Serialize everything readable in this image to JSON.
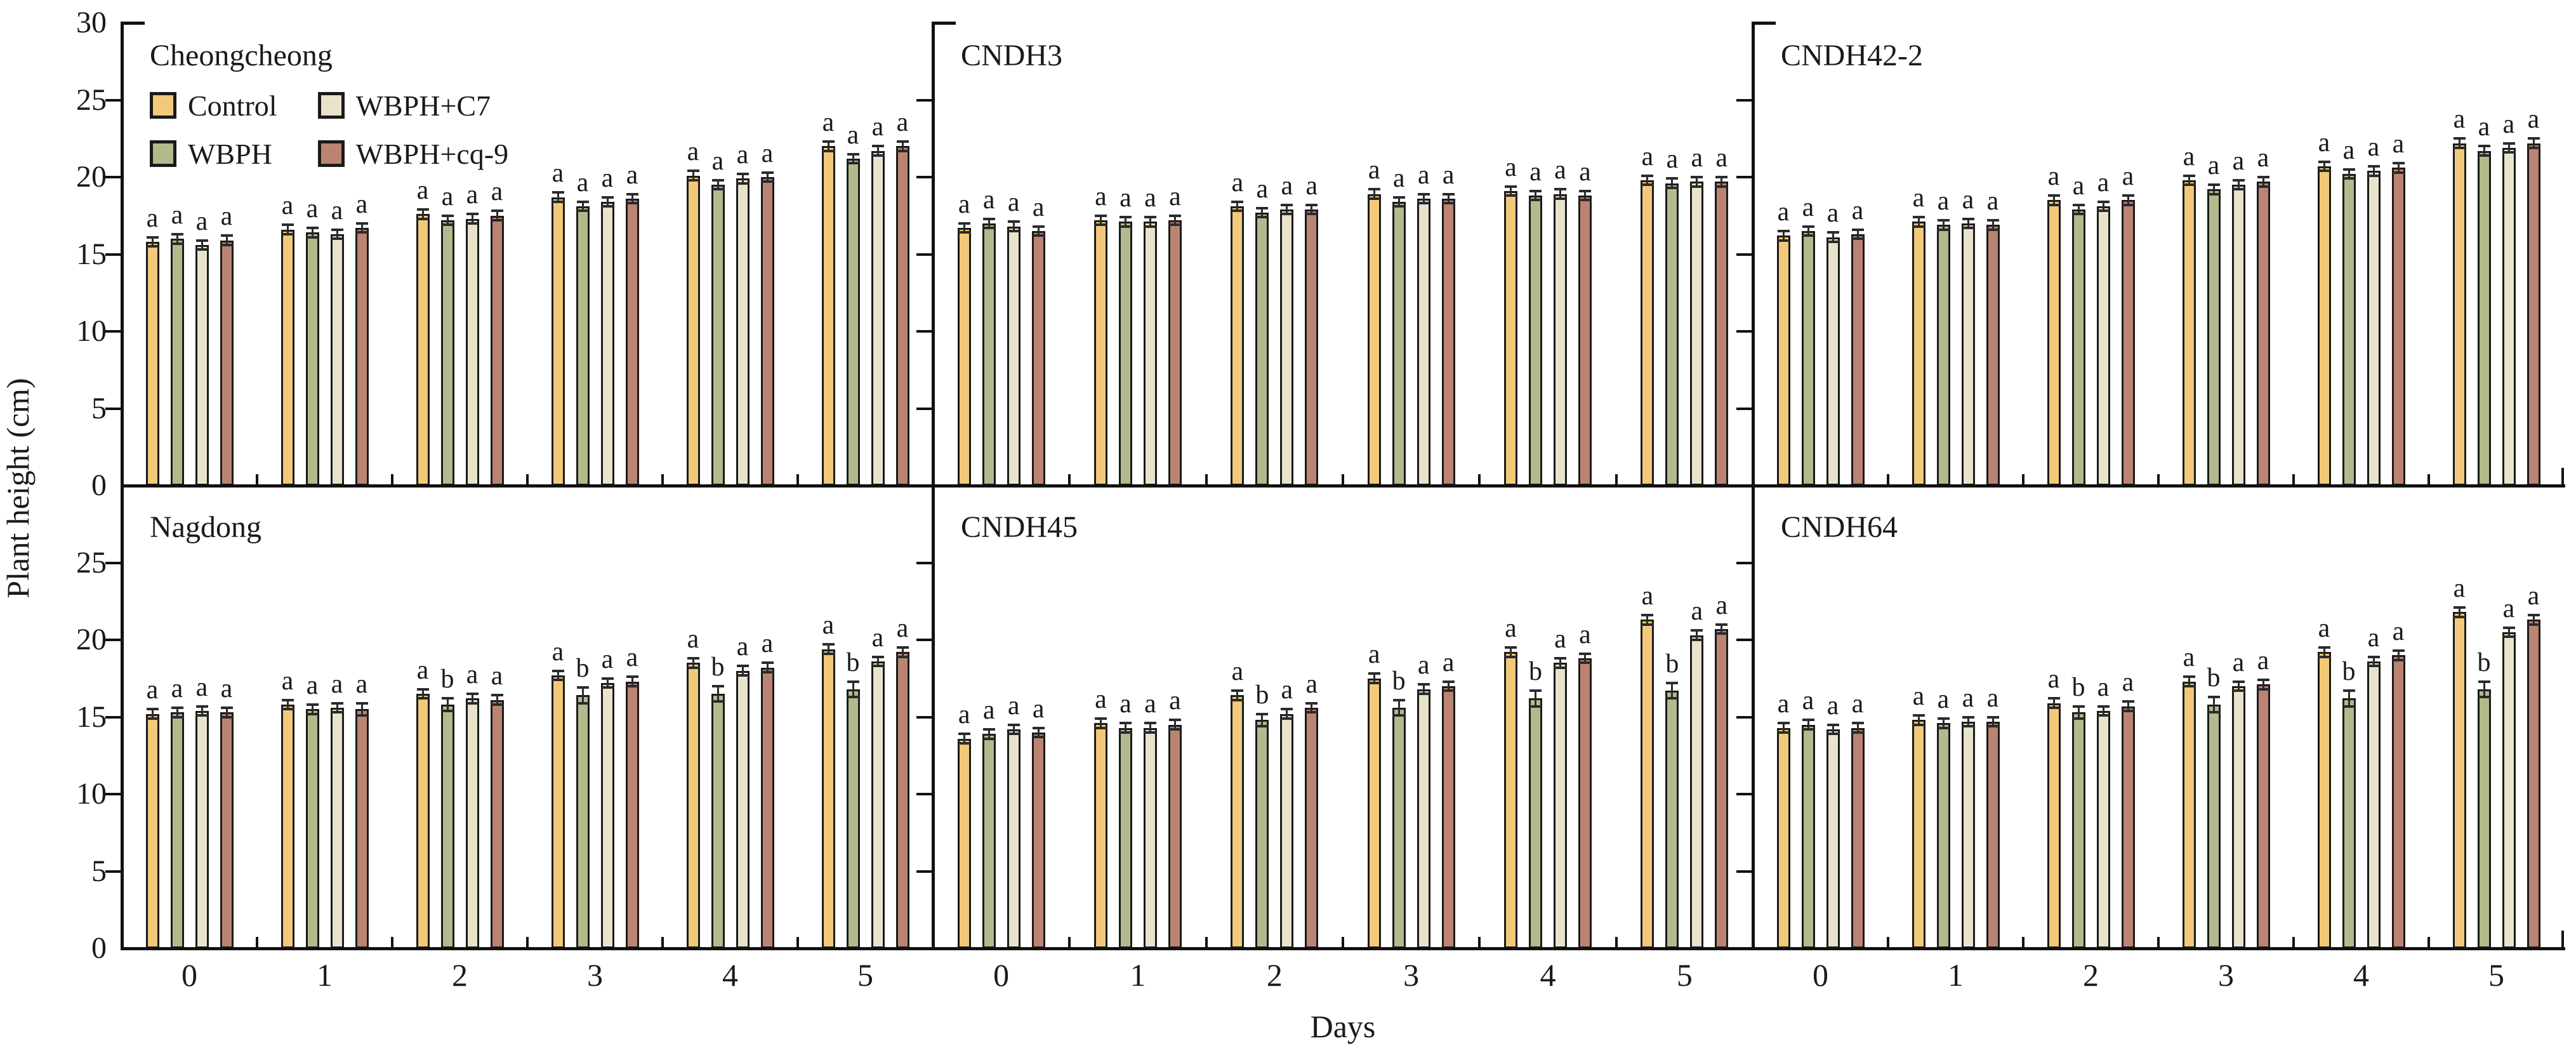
{
  "figure": {
    "ylabel": "Plant height (cm)",
    "xlabel": "Days",
    "y_tick_labels_top": [
      "0",
      "5",
      "10",
      "15",
      "20",
      "25",
      "30"
    ],
    "y_tick_labels_bottom": [
      "0",
      "5",
      "10",
      "15",
      "20",
      "25"
    ],
    "x_tick_labels": [
      "0",
      "1",
      "2",
      "3",
      "4",
      "5"
    ],
    "axis_color": "#111111",
    "bar_border_color": "#1a1a1a",
    "error_bar_color": "#2b2b2b",
    "legend": [
      {
        "label": "Control",
        "color": "#F1C978"
      },
      {
        "label": "WBPH",
        "color": "#B2BA8C"
      },
      {
        "label": "WBPH+C7",
        "color": "#E9E3CB"
      },
      {
        "label": "WBPH+cq-9",
        "color": "#BB8472"
      }
    ]
  },
  "chart_data": [
    {
      "type": "bar",
      "title": "Cheongcheong",
      "row": 0,
      "col": 0,
      "categories": [
        "0",
        "1",
        "2",
        "3",
        "4",
        "5"
      ],
      "ylim": [
        0,
        30
      ],
      "yticks": [
        0,
        5,
        10,
        15,
        20,
        25,
        30
      ],
      "grid": false,
      "legend_position": "top-left",
      "series": [
        {
          "name": "Control",
          "values": [
            15.8,
            16.6,
            17.6,
            18.7,
            20.1,
            22.0
          ],
          "errors": [
            0.3,
            0.3,
            0.3,
            0.3,
            0.3,
            0.3
          ],
          "letters": [
            "a",
            "a",
            "a",
            "a",
            "a",
            "a"
          ]
        },
        {
          "name": "WBPH",
          "values": [
            16.0,
            16.4,
            17.2,
            18.1,
            19.5,
            21.2
          ],
          "errors": [
            0.3,
            0.3,
            0.3,
            0.3,
            0.3,
            0.3
          ],
          "letters": [
            "a",
            "a",
            "a",
            "a",
            "a",
            "a"
          ]
        },
        {
          "name": "WBPH+C7",
          "values": [
            15.6,
            16.3,
            17.3,
            18.4,
            19.9,
            21.7
          ],
          "errors": [
            0.3,
            0.3,
            0.3,
            0.3,
            0.3,
            0.3
          ],
          "letters": [
            "a",
            "a",
            "a",
            "a",
            "a",
            "a"
          ]
        },
        {
          "name": "WBPH+cq-9",
          "values": [
            15.9,
            16.7,
            17.5,
            18.6,
            20.0,
            22.0
          ],
          "errors": [
            0.3,
            0.3,
            0.3,
            0.3,
            0.3,
            0.3
          ],
          "letters": [
            "a",
            "a",
            "a",
            "a",
            "a",
            "a"
          ]
        }
      ]
    },
    {
      "type": "bar",
      "title": "CNDH3",
      "row": 0,
      "col": 1,
      "categories": [
        "0",
        "1",
        "2",
        "3",
        "4",
        "5"
      ],
      "ylim": [
        0,
        30
      ],
      "yticks": [
        0,
        5,
        10,
        15,
        20,
        25,
        30
      ],
      "grid": false,
      "series": [
        {
          "name": "Control",
          "values": [
            16.7,
            17.2,
            18.1,
            18.9,
            19.1,
            19.8
          ],
          "errors": [
            0.3,
            0.3,
            0.3,
            0.3,
            0.3,
            0.3
          ],
          "letters": [
            "a",
            "a",
            "a",
            "a",
            "a",
            "a"
          ]
        },
        {
          "name": "WBPH",
          "values": [
            17.0,
            17.1,
            17.7,
            18.4,
            18.8,
            19.6
          ],
          "errors": [
            0.3,
            0.3,
            0.3,
            0.3,
            0.3,
            0.3
          ],
          "letters": [
            "a",
            "a",
            "a",
            "a",
            "a",
            "a"
          ]
        },
        {
          "name": "WBPH+C7",
          "values": [
            16.8,
            17.1,
            17.9,
            18.6,
            18.9,
            19.7
          ],
          "errors": [
            0.3,
            0.3,
            0.3,
            0.3,
            0.3,
            0.3
          ],
          "letters": [
            "a",
            "a",
            "a",
            "a",
            "a",
            "a"
          ]
        },
        {
          "name": "WBPH+cq-9",
          "values": [
            16.5,
            17.2,
            17.9,
            18.6,
            18.8,
            19.7
          ],
          "errors": [
            0.3,
            0.3,
            0.3,
            0.3,
            0.3,
            0.3
          ],
          "letters": [
            "a",
            "a",
            "a",
            "a",
            "a",
            "a"
          ]
        }
      ]
    },
    {
      "type": "bar",
      "title": "CNDH42-2",
      "row": 0,
      "col": 2,
      "categories": [
        "0",
        "1",
        "2",
        "3",
        "4",
        "5"
      ],
      "ylim": [
        0,
        30
      ],
      "yticks": [
        0,
        5,
        10,
        15,
        20,
        25,
        30
      ],
      "grid": false,
      "series": [
        {
          "name": "Control",
          "values": [
            16.2,
            17.1,
            18.5,
            19.8,
            20.7,
            22.2
          ],
          "errors": [
            0.3,
            0.3,
            0.3,
            0.3,
            0.3,
            0.3
          ],
          "letters": [
            "a",
            "a",
            "a",
            "a",
            "a",
            "a"
          ]
        },
        {
          "name": "WBPH",
          "values": [
            16.5,
            16.9,
            17.9,
            19.2,
            20.2,
            21.7
          ],
          "errors": [
            0.3,
            0.3,
            0.3,
            0.3,
            0.3,
            0.3
          ],
          "letters": [
            "a",
            "a",
            "a",
            "a",
            "a",
            "a"
          ]
        },
        {
          "name": "WBPH+C7",
          "values": [
            16.1,
            17.0,
            18.1,
            19.5,
            20.4,
            21.9
          ],
          "errors": [
            0.3,
            0.3,
            0.3,
            0.3,
            0.3,
            0.3
          ],
          "letters": [
            "a",
            "a",
            "a",
            "a",
            "a",
            "a"
          ]
        },
        {
          "name": "WBPH+cq-9",
          "values": [
            16.3,
            16.9,
            18.5,
            19.7,
            20.6,
            22.2
          ],
          "errors": [
            0.3,
            0.3,
            0.3,
            0.3,
            0.3,
            0.3
          ],
          "letters": [
            "a",
            "a",
            "a",
            "a",
            "a",
            "a"
          ]
        }
      ]
    },
    {
      "type": "bar",
      "title": "Nagdong",
      "row": 1,
      "col": 0,
      "categories": [
        "0",
        "1",
        "2",
        "3",
        "4",
        "5"
      ],
      "ylim": [
        0,
        30
      ],
      "yticks": [
        0,
        5,
        10,
        15,
        20,
        25
      ],
      "grid": false,
      "series": [
        {
          "name": "Control",
          "values": [
            15.2,
            15.8,
            16.5,
            17.7,
            18.5,
            19.4
          ],
          "errors": [
            0.3,
            0.3,
            0.3,
            0.3,
            0.3,
            0.3
          ],
          "letters": [
            "a",
            "a",
            "a",
            "a",
            "a",
            "a"
          ]
        },
        {
          "name": "WBPH",
          "values": [
            15.3,
            15.5,
            15.8,
            16.4,
            16.5,
            16.8
          ],
          "errors": [
            0.3,
            0.3,
            0.4,
            0.5,
            0.5,
            0.5
          ],
          "letters": [
            "a",
            "a",
            "b",
            "b",
            "b",
            "b"
          ]
        },
        {
          "name": "WBPH+C7",
          "values": [
            15.4,
            15.6,
            16.2,
            17.2,
            18.0,
            18.6
          ],
          "errors": [
            0.3,
            0.3,
            0.3,
            0.3,
            0.3,
            0.3
          ],
          "letters": [
            "a",
            "a",
            "a",
            "a",
            "a",
            "a"
          ]
        },
        {
          "name": "WBPH+cq-9",
          "values": [
            15.3,
            15.5,
            16.1,
            17.3,
            18.2,
            19.2
          ],
          "errors": [
            0.3,
            0.4,
            0.3,
            0.3,
            0.3,
            0.3
          ],
          "letters": [
            "a",
            "a",
            "a",
            "a",
            "a",
            "a"
          ]
        }
      ]
    },
    {
      "type": "bar",
      "title": "CNDH45",
      "row": 1,
      "col": 1,
      "categories": [
        "0",
        "1",
        "2",
        "3",
        "4",
        "5"
      ],
      "ylim": [
        0,
        30
      ],
      "yticks": [
        0,
        5,
        10,
        15,
        20,
        25
      ],
      "grid": false,
      "series": [
        {
          "name": "Control",
          "values": [
            13.6,
            14.6,
            16.4,
            17.5,
            19.2,
            21.3
          ],
          "errors": [
            0.3,
            0.3,
            0.3,
            0.3,
            0.3,
            0.3
          ],
          "letters": [
            "a",
            "a",
            "a",
            "a",
            "a",
            "a"
          ]
        },
        {
          "name": "WBPH",
          "values": [
            13.9,
            14.3,
            14.8,
            15.6,
            16.2,
            16.7
          ],
          "errors": [
            0.3,
            0.3,
            0.4,
            0.5,
            0.5,
            0.5
          ],
          "letters": [
            "a",
            "a",
            "b",
            "b",
            "b",
            "b"
          ]
        },
        {
          "name": "WBPH+C7",
          "values": [
            14.2,
            14.3,
            15.2,
            16.8,
            18.5,
            20.3
          ],
          "errors": [
            0.3,
            0.3,
            0.3,
            0.3,
            0.3,
            0.3
          ],
          "letters": [
            "a",
            "a",
            "a",
            "a",
            "a",
            "a"
          ]
        },
        {
          "name": "WBPH+cq-9",
          "values": [
            14.0,
            14.5,
            15.6,
            17.0,
            18.8,
            20.7
          ],
          "errors": [
            0.3,
            0.3,
            0.3,
            0.3,
            0.3,
            0.3
          ],
          "letters": [
            "a",
            "a",
            "a",
            "a",
            "a",
            "a"
          ]
        }
      ]
    },
    {
      "type": "bar",
      "title": "CNDH64",
      "row": 1,
      "col": 2,
      "categories": [
        "0",
        "1",
        "2",
        "3",
        "4",
        "5"
      ],
      "ylim": [
        0,
        30
      ],
      "yticks": [
        0,
        5,
        10,
        15,
        20,
        25
      ],
      "grid": false,
      "series": [
        {
          "name": "Control",
          "values": [
            14.3,
            14.8,
            15.9,
            17.3,
            19.2,
            21.8
          ],
          "errors": [
            0.3,
            0.3,
            0.3,
            0.3,
            0.3,
            0.3
          ],
          "letters": [
            "a",
            "a",
            "a",
            "a",
            "a",
            "a"
          ]
        },
        {
          "name": "WBPH",
          "values": [
            14.5,
            14.6,
            15.3,
            15.8,
            16.2,
            16.8
          ],
          "errors": [
            0.3,
            0.3,
            0.4,
            0.5,
            0.5,
            0.5
          ],
          "letters": [
            "a",
            "a",
            "b",
            "b",
            "b",
            "b"
          ]
        },
        {
          "name": "WBPH+C7",
          "values": [
            14.2,
            14.7,
            15.4,
            17.0,
            18.6,
            20.5
          ],
          "errors": [
            0.3,
            0.3,
            0.3,
            0.3,
            0.3,
            0.3
          ],
          "letters": [
            "a",
            "a",
            "a",
            "a",
            "a",
            "a"
          ]
        },
        {
          "name": "WBPH+cq-9",
          "values": [
            14.3,
            14.7,
            15.7,
            17.1,
            19.0,
            21.3
          ],
          "errors": [
            0.3,
            0.3,
            0.3,
            0.3,
            0.3,
            0.3
          ],
          "letters": [
            "a",
            "a",
            "a",
            "a",
            "a",
            "a"
          ]
        }
      ]
    }
  ]
}
